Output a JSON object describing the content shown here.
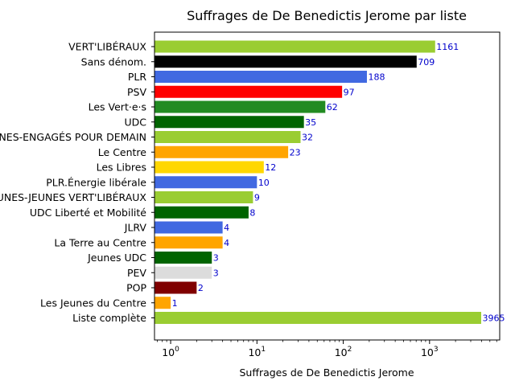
{
  "chart_data": {
    "type": "bar",
    "orientation": "horizontal",
    "title": "Suffrages de De Benedictis Jerome par liste",
    "xlabel": "Suffrages de De Benedictis Jerome",
    "ylabel": "",
    "xscale": "log",
    "xlim": [
      0.65,
      6500
    ],
    "x_ticks": [
      {
        "value": 1,
        "base": "10",
        "exp": "0"
      },
      {
        "value": 10,
        "base": "10",
        "exp": "1"
      },
      {
        "value": 100,
        "base": "10",
        "exp": "2"
      },
      {
        "value": 1000,
        "base": "10",
        "exp": "3"
      }
    ],
    "grid": false,
    "value_label_color": "#0000cc",
    "categories": [
      "VERT'LIBÉRAUX",
      "Sans dénom.",
      "PLR",
      "PSV",
      "Les Vert·e·s",
      "UDC",
      "JEUNES-ENGAGÉS POUR DEMAIN",
      "Le Centre",
      "Les Libres",
      "PLR.Énergie libérale",
      "JEUNES-JEUNES VERT'LIBÉRAUX",
      "UDC Liberté et Mobilité",
      "JLRV",
      "La Terre au Centre",
      "Jeunes UDC",
      "PEV",
      "POP",
      "Les Jeunes du Centre",
      "Liste complète"
    ],
    "values": [
      1161,
      709,
      188,
      97,
      62,
      35,
      32,
      23,
      12,
      10,
      9,
      8,
      4,
      4,
      3,
      3,
      2,
      1,
      3965
    ],
    "colors": [
      "#9acd32",
      "#000000",
      "#4169e1",
      "#ff0000",
      "#228b22",
      "#006400",
      "#9acd32",
      "#ffa500",
      "#ffd700",
      "#4169e1",
      "#9acd32",
      "#006400",
      "#4169e1",
      "#ffa500",
      "#006400",
      "#dcdcdc",
      "#800000",
      "#ffa500",
      "#9acd32"
    ]
  }
}
